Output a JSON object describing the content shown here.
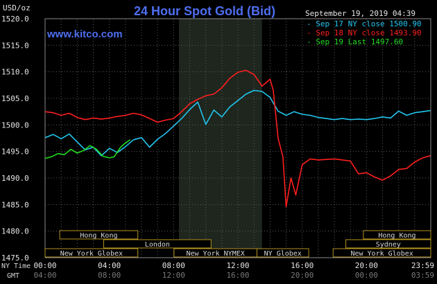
{
  "header": {
    "y_unit": "USD/oz",
    "title": "24 Hour Spot Gold (Bid)",
    "datetime": "September 19, 2019 04:39",
    "watermark": "www.kitco.com"
  },
  "axis_labels": {
    "ny_time": "NY Time",
    "gmt": "GMT"
  },
  "sessions": [
    {
      "label": "Hong Kong",
      "row": 1,
      "start": 1.5,
      "end": 9.5
    },
    {
      "label": "London",
      "row": 2,
      "start": 6.0,
      "end": 17.0
    },
    {
      "label": "New York Globex",
      "row": 3,
      "start": 0.0,
      "end": 9.5
    },
    {
      "label": "New York NYMEX",
      "row": 3,
      "start": 13.2,
      "end": 21.7
    },
    {
      "label": "NY Globex",
      "row": 3,
      "start": 21.7,
      "end": 27.0
    },
    {
      "label": "Hong Kong",
      "row": 1,
      "start": 32.6,
      "end": 39.5
    },
    {
      "label": "Sydney",
      "row": 2,
      "start": 30.8,
      "end": 39.5
    },
    {
      "label": "New York Globex",
      "row": 3,
      "start": 29.5,
      "end": 39.5
    }
  ],
  "chart_data": {
    "type": "line",
    "title": "24 Hour Spot Gold (Bid)",
    "ylabel": "USD/oz",
    "ylim": [
      1475,
      1520
    ],
    "y_ticks": [
      "1520.0",
      "1515.0",
      "1510.0",
      "1505.0",
      "1500.0",
      "1495.0",
      "1490.0",
      "1485.0",
      "1480.0",
      "1475.0"
    ],
    "x_ticks_ny": [
      "00:00",
      "04:00",
      "08:00",
      "12:00",
      "16:00",
      "20:00",
      "23:59"
    ],
    "x_ticks_gmt": [
      "04:00",
      "08:00",
      "12:00",
      "16:00",
      "20:00",
      "00:00",
      "03:59"
    ],
    "grid": true,
    "legend_position": "top-right",
    "shaded_session": {
      "label": "New York NYMEX",
      "start_hour": 8.33,
      "end_hour": 13.5
    },
    "series": [
      {
        "name": "Sep 17 NY close 1500.90",
        "color": "#22c6ee",
        "points": [
          [
            0,
            1497.6
          ],
          [
            0.5,
            1498.2
          ],
          [
            1.0,
            1497.4
          ],
          [
            1.5,
            1498.3
          ],
          [
            2.0,
            1496.8
          ],
          [
            2.5,
            1495.3
          ],
          [
            3.0,
            1495.8
          ],
          [
            3.5,
            1494.2
          ],
          [
            4.0,
            1495.6
          ],
          [
            4.5,
            1494.8
          ],
          [
            5.0,
            1495.9
          ],
          [
            5.5,
            1497.2
          ],
          [
            6.0,
            1497.6
          ],
          [
            6.5,
            1495.8
          ],
          [
            7.0,
            1497.3
          ],
          [
            7.5,
            1498.4
          ],
          [
            8.0,
            1499.8
          ],
          [
            8.5,
            1501.2
          ],
          [
            9.0,
            1502.9
          ],
          [
            9.5,
            1504.3
          ],
          [
            10.0,
            1500.1
          ],
          [
            10.5,
            1502.8
          ],
          [
            11.0,
            1501.5
          ],
          [
            11.5,
            1503.4
          ],
          [
            12.0,
            1504.6
          ],
          [
            12.5,
            1505.8
          ],
          [
            13.0,
            1506.5
          ],
          [
            13.5,
            1506.3
          ],
          [
            14.0,
            1505.2
          ],
          [
            14.5,
            1502.6
          ],
          [
            15.0,
            1501.8
          ],
          [
            15.5,
            1502.5
          ],
          [
            16.0,
            1502.0
          ],
          [
            16.5,
            1501.8
          ],
          [
            17.0,
            1501.4
          ],
          [
            17.5,
            1501.2
          ],
          [
            18.0,
            1501.0
          ],
          [
            18.5,
            1501.2
          ],
          [
            19.0,
            1501.0
          ],
          [
            19.5,
            1501.1
          ],
          [
            20.0,
            1501.0
          ],
          [
            20.5,
            1501.2
          ],
          [
            21.0,
            1501.5
          ],
          [
            21.5,
            1501.3
          ],
          [
            22.0,
            1502.6
          ],
          [
            22.5,
            1501.8
          ],
          [
            23.0,
            1502.3
          ],
          [
            23.5,
            1502.5
          ],
          [
            23.98,
            1502.7
          ]
        ]
      },
      {
        "name": "Sep 18 NY close 1493.90",
        "color": "#ff1f1f",
        "points": [
          [
            0,
            1502.5
          ],
          [
            0.5,
            1502.3
          ],
          [
            1.0,
            1501.8
          ],
          [
            1.5,
            1502.2
          ],
          [
            2.0,
            1501.4
          ],
          [
            2.5,
            1501.0
          ],
          [
            3.0,
            1501.3
          ],
          [
            3.5,
            1501.1
          ],
          [
            4.0,
            1501.3
          ],
          [
            4.5,
            1501.6
          ],
          [
            5.0,
            1501.8
          ],
          [
            5.5,
            1502.2
          ],
          [
            6.0,
            1501.9
          ],
          [
            6.5,
            1501.2
          ],
          [
            7.0,
            1500.5
          ],
          [
            7.5,
            1500.9
          ],
          [
            8.0,
            1501.2
          ],
          [
            8.5,
            1502.5
          ],
          [
            9.0,
            1504.0
          ],
          [
            9.5,
            1504.8
          ],
          [
            10.0,
            1505.5
          ],
          [
            10.5,
            1505.8
          ],
          [
            11.0,
            1507.0
          ],
          [
            11.5,
            1508.8
          ],
          [
            12.0,
            1509.9
          ],
          [
            12.5,
            1510.3
          ],
          [
            13.0,
            1509.5
          ],
          [
            13.5,
            1507.3
          ],
          [
            14.0,
            1508.6
          ],
          [
            14.2,
            1506.5
          ],
          [
            14.5,
            1497.5
          ],
          [
            14.8,
            1494.0
          ],
          [
            15.0,
            1484.6
          ],
          [
            15.3,
            1490.0
          ],
          [
            15.6,
            1486.8
          ],
          [
            16.0,
            1492.5
          ],
          [
            16.5,
            1493.6
          ],
          [
            17.0,
            1493.4
          ],
          [
            17.5,
            1493.5
          ],
          [
            18.0,
            1493.6
          ],
          [
            18.5,
            1493.4
          ],
          [
            19.0,
            1493.2
          ],
          [
            19.5,
            1490.8
          ],
          [
            20.0,
            1491.0
          ],
          [
            20.5,
            1490.2
          ],
          [
            21.0,
            1489.6
          ],
          [
            21.5,
            1490.4
          ],
          [
            22.0,
            1491.6
          ],
          [
            22.5,
            1491.8
          ],
          [
            23.0,
            1493.0
          ],
          [
            23.5,
            1493.8
          ],
          [
            23.98,
            1494.2
          ]
        ]
      },
      {
        "name": "Sep 19 Last 1497.60",
        "color": "#22dd22",
        "points": [
          [
            0,
            1493.7
          ],
          [
            0.4,
            1494.0
          ],
          [
            0.8,
            1494.6
          ],
          [
            1.2,
            1494.4
          ],
          [
            1.6,
            1495.4
          ],
          [
            2.0,
            1494.7
          ],
          [
            2.4,
            1495.2
          ],
          [
            2.8,
            1496.1
          ],
          [
            3.2,
            1495.4
          ],
          [
            3.6,
            1494.1
          ],
          [
            4.0,
            1493.8
          ],
          [
            4.3,
            1494.0
          ],
          [
            4.7,
            1495.8
          ],
          [
            5.0,
            1496.6
          ],
          [
            5.3,
            1497.2
          ]
        ]
      }
    ]
  }
}
